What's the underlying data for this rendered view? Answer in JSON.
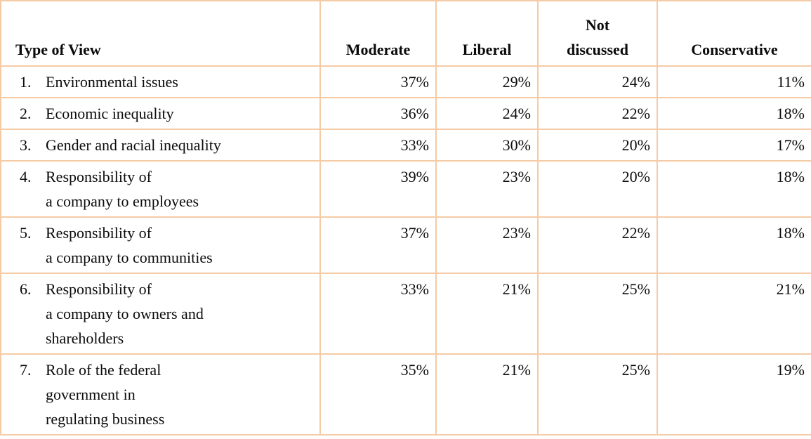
{
  "table": {
    "headers": [
      {
        "label": "Type of View",
        "align": "left"
      },
      {
        "label": "Moderate",
        "align": "center"
      },
      {
        "label": "Liberal",
        "align": "center"
      },
      {
        "label": "Not\ndiscussed",
        "align": "center"
      },
      {
        "label": "Conservative",
        "align": "center"
      }
    ],
    "rows": [
      {
        "number": "1.",
        "label": "Environmental issues",
        "values": [
          "37%",
          "29%",
          "24%",
          "11%"
        ]
      },
      {
        "number": "2.",
        "label": "Economic inequality",
        "values": [
          "36%",
          "24%",
          "22%",
          "18%"
        ]
      },
      {
        "number": "3.",
        "label": "Gender and racial inequality",
        "values": [
          "33%",
          "30%",
          "20%",
          "17%"
        ]
      },
      {
        "number": "4.",
        "label": "Responsibility of\na company to employees",
        "values": [
          "39%",
          "23%",
          "20%",
          "18%"
        ]
      },
      {
        "number": "5.",
        "label": "Responsibility of\na company to communities",
        "values": [
          "37%",
          "23%",
          "22%",
          "18%"
        ]
      },
      {
        "number": "6.",
        "label": "Responsibility of\na company to owners and\nshareholders",
        "values": [
          "33%",
          "21%",
          "25%",
          "21%"
        ]
      },
      {
        "number": "7.",
        "label": "Role of the federal\ngovernment in\nregulating business",
        "values": [
          "35%",
          "21%",
          "25%",
          "19%"
        ]
      }
    ]
  },
  "colors": {
    "border_light": "#F5CBA6",
    "border_accent": "#F0A876",
    "text": "#0B0B0B",
    "background": "#FFFFFF"
  },
  "chart_data": {
    "type": "table",
    "title": "Type of View",
    "columns": [
      "Type of View",
      "Moderate",
      "Liberal",
      "Not discussed",
      "Conservative"
    ],
    "unit": "percent",
    "rows": [
      {
        "type_of_view": "Environmental issues",
        "moderate": 37,
        "liberal": 29,
        "not_discussed": 24,
        "conservative": 11
      },
      {
        "type_of_view": "Economic inequality",
        "moderate": 36,
        "liberal": 24,
        "not_discussed": 22,
        "conservative": 18
      },
      {
        "type_of_view": "Gender and racial inequality",
        "moderate": 33,
        "liberal": 30,
        "not_discussed": 20,
        "conservative": 17
      },
      {
        "type_of_view": "Responsibility of a company to employees",
        "moderate": 39,
        "liberal": 23,
        "not_discussed": 20,
        "conservative": 18
      },
      {
        "type_of_view": "Responsibility of a company to communities",
        "moderate": 37,
        "liberal": 23,
        "not_discussed": 22,
        "conservative": 18
      },
      {
        "type_of_view": "Responsibility of a company to owners and shareholders",
        "moderate": 33,
        "liberal": 21,
        "not_discussed": 25,
        "conservative": 21
      },
      {
        "type_of_view": "Role of the federal government in regulating business",
        "moderate": 35,
        "liberal": 21,
        "not_discussed": 25,
        "conservative": 19
      }
    ]
  }
}
